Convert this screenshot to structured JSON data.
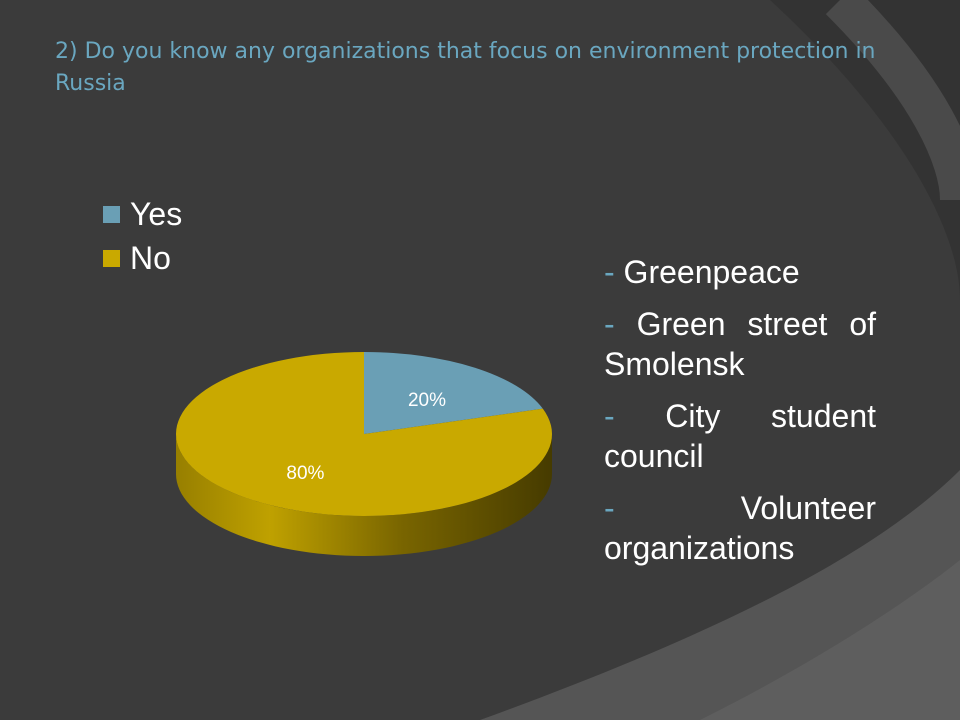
{
  "slide": {
    "title": "2) Do you know any organizations that focus on environment protection in Russia"
  },
  "chart_data": {
    "type": "pie",
    "categories": [
      "Yes",
      "No"
    ],
    "values": [
      20,
      80
    ],
    "data_labels": [
      "20%",
      "80%"
    ],
    "colors": [
      "#6a9fb5",
      "#c9a900"
    ],
    "legend_position": "top-left",
    "style": "3d"
  },
  "organizations": {
    "bullet": "-",
    "items": [
      "Greenpeace",
      "Green street of Smolensk",
      "City student council",
      "Volunteer organizations"
    ]
  },
  "colors": {
    "background": "#3b3b3b",
    "title": "#6aa7c0",
    "text": "#ffffff"
  }
}
